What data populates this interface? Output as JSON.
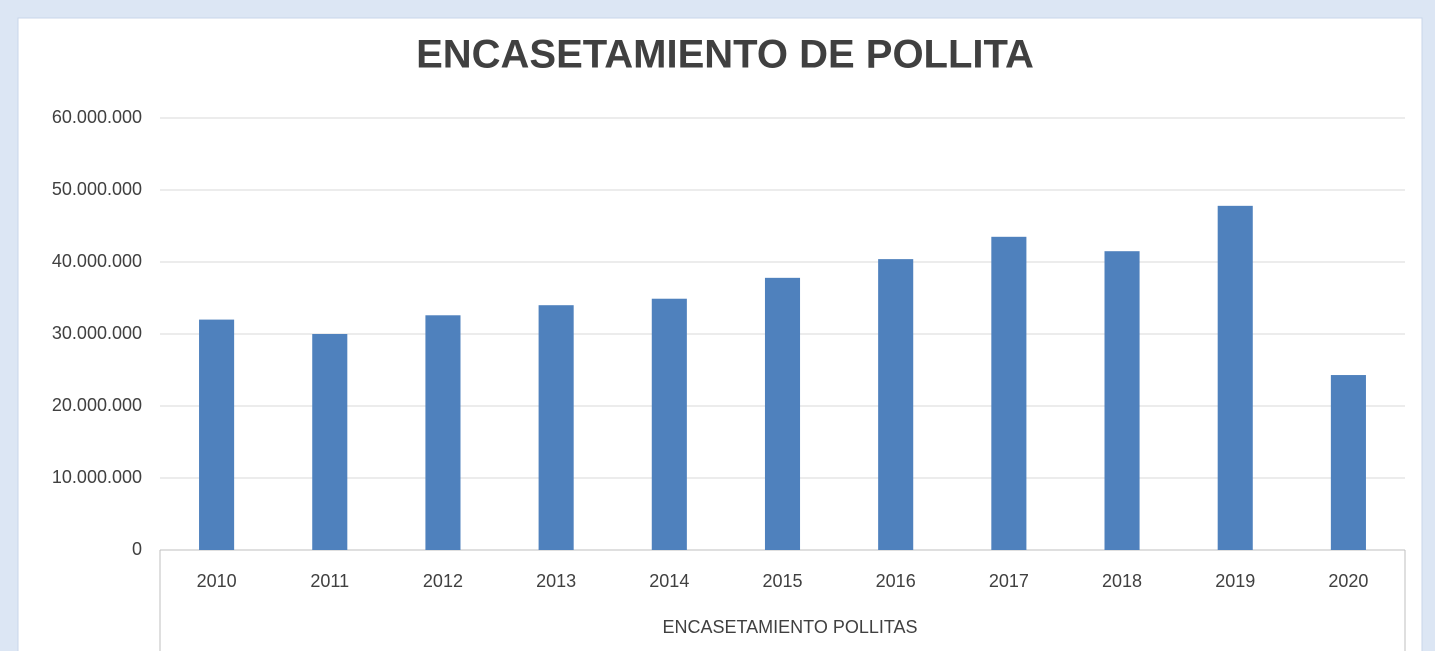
{
  "chart_data": {
    "type": "bar",
    "title": "ENCASETAMIENTO DE POLLITA",
    "xlabel": "ENCASETAMIENTO POLLITAS",
    "categories": [
      "2010",
      "2011",
      "2012",
      "2013",
      "2014",
      "2015",
      "2016",
      "2017",
      "2018",
      "2019",
      "2020"
    ],
    "values": [
      32000000,
      30000000,
      32600000,
      34000000,
      34900000,
      37800000,
      40400000,
      43500000,
      41500000,
      47800000,
      24300000
    ],
    "color": "#4f81bd",
    "ylim": [
      0,
      60000000
    ],
    "yticks": [
      0,
      {
        "value": 10000000,
        "label": "10.000.000"
      },
      {
        "value": 20000000,
        "label": "20.000.000"
      },
      {
        "value": 30000000,
        "label": "30.000.000"
      },
      {
        "value": 40000000,
        "label": "40.000.000"
      },
      {
        "value": 50000000,
        "label": "50.000.000"
      },
      {
        "value": 60000000,
        "label": "60.000.000"
      }
    ],
    "grid": true
  }
}
